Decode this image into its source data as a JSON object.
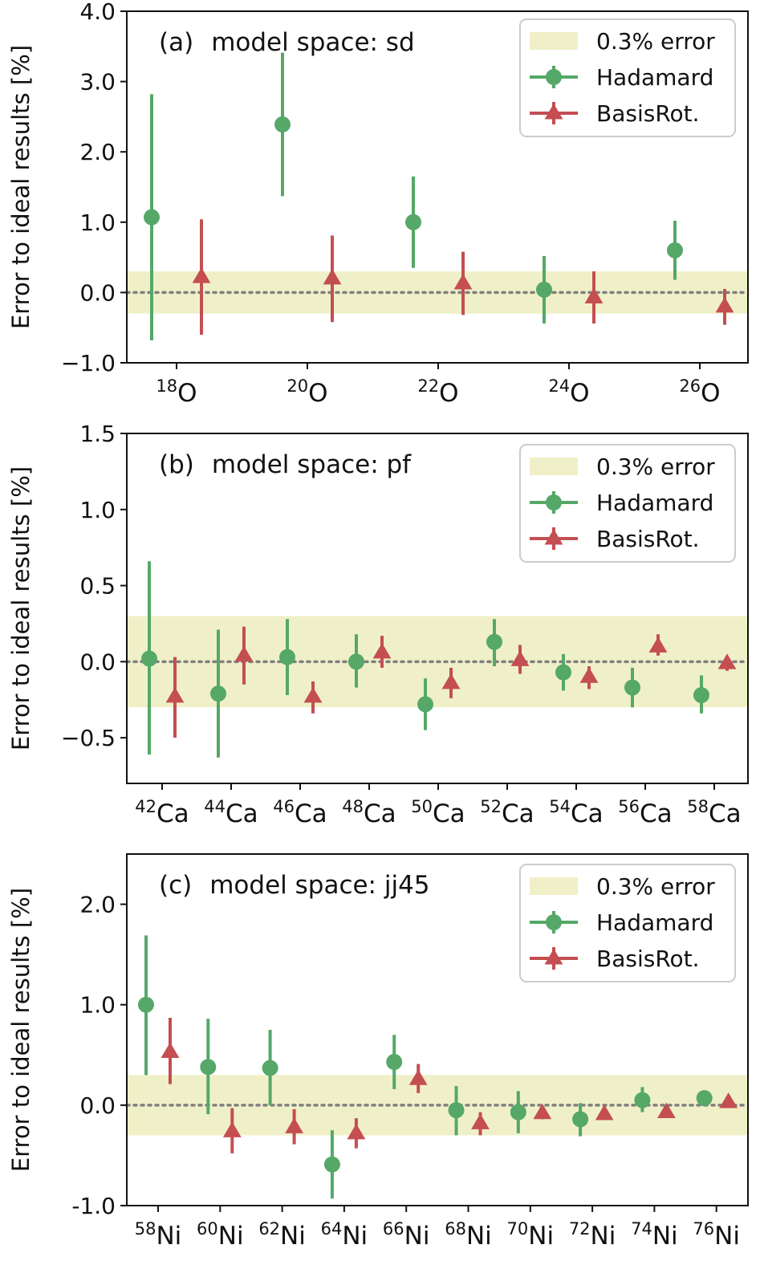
{
  "chart_data": [
    {
      "type": "errorbar",
      "panel_label": "(a)",
      "title": "model space: sd",
      "ylabel": "Error to ideal results [%]",
      "ylim": [
        -1.0,
        4.0
      ],
      "yticks": [
        -1.0,
        0.0,
        1.0,
        2.0,
        3.0,
        4.0
      ],
      "ytick_labels": [
        "−1.0",
        "0.0",
        "1.0",
        "2.0",
        "3.0",
        "4.0"
      ],
      "categories": [
        {
          "mass": "18",
          "element": "O"
        },
        {
          "mass": "20",
          "element": "O"
        },
        {
          "mass": "22",
          "element": "O"
        },
        {
          "mass": "24",
          "element": "O"
        },
        {
          "mass": "26",
          "element": "O"
        }
      ],
      "band": {
        "label": "0.3% error",
        "low": -0.3,
        "high": 0.3,
        "color": "#f0f0c8"
      },
      "reference_line": 0.0,
      "legend": {
        "position": "top-right",
        "entries": [
          "0.3% error",
          "Hadamard",
          "BasisRot."
        ]
      },
      "series": [
        {
          "name": "Hadamard",
          "marker": "circle",
          "color": "#55a868",
          "values": [
            1.07,
            2.39,
            1.0,
            0.04,
            0.6
          ],
          "err_low": [
            -0.68,
            1.37,
            0.35,
            -0.44,
            0.18
          ],
          "err_high": [
            2.82,
            3.41,
            1.65,
            0.52,
            1.02
          ]
        },
        {
          "name": "BasisRot.",
          "marker": "triangle",
          "color": "#c44e52",
          "values": [
            0.22,
            0.2,
            0.13,
            -0.07,
            -0.2
          ],
          "err_low": [
            -0.6,
            -0.42,
            -0.32,
            -0.44,
            -0.46
          ],
          "err_high": [
            1.04,
            0.81,
            0.58,
            0.3,
            0.05
          ]
        }
      ]
    },
    {
      "type": "errorbar",
      "panel_label": "(b)",
      "title": "model space: pf",
      "ylabel": "Error to ideal results [%]",
      "ylim": [
        -0.8,
        1.5
      ],
      "yticks": [
        -0.5,
        0.0,
        0.5,
        1.0,
        1.5
      ],
      "ytick_labels": [
        "−0.5",
        "0.0",
        "0.5",
        "1.0",
        "1.5"
      ],
      "categories": [
        {
          "mass": "42",
          "element": "Ca"
        },
        {
          "mass": "44",
          "element": "Ca"
        },
        {
          "mass": "46",
          "element": "Ca"
        },
        {
          "mass": "48",
          "element": "Ca"
        },
        {
          "mass": "50",
          "element": "Ca"
        },
        {
          "mass": "52",
          "element": "Ca"
        },
        {
          "mass": "54",
          "element": "Ca"
        },
        {
          "mass": "56",
          "element": "Ca"
        },
        {
          "mass": "58",
          "element": "Ca"
        }
      ],
      "band": {
        "label": "0.3% error",
        "low": -0.3,
        "high": 0.3,
        "color": "#f0f0c8"
      },
      "reference_line": 0.0,
      "legend": {
        "position": "top-right",
        "entries": [
          "0.3% error",
          "Hadamard",
          "BasisRot."
        ]
      },
      "series": [
        {
          "name": "Hadamard",
          "marker": "circle",
          "color": "#55a868",
          "values": [
            0.02,
            -0.21,
            0.03,
            0.0,
            -0.28,
            0.13,
            -0.07,
            -0.17,
            -0.22
          ],
          "err_low": [
            -0.61,
            -0.63,
            -0.22,
            -0.17,
            -0.45,
            -0.03,
            -0.19,
            -0.3,
            -0.34
          ],
          "err_high": [
            0.66,
            0.21,
            0.28,
            0.18,
            -0.11,
            0.28,
            0.05,
            -0.04,
            -0.09
          ]
        },
        {
          "name": "BasisRot.",
          "marker": "triangle",
          "color": "#c44e52",
          "values": [
            -0.23,
            0.04,
            -0.23,
            0.06,
            -0.14,
            0.01,
            -0.1,
            0.1,
            -0.01
          ],
          "err_low": [
            -0.5,
            -0.15,
            -0.34,
            -0.04,
            -0.24,
            -0.08,
            -0.18,
            0.04,
            -0.06
          ],
          "err_high": [
            0.03,
            0.23,
            -0.13,
            0.17,
            -0.04,
            0.11,
            -0.03,
            0.18,
            0.03
          ]
        }
      ]
    },
    {
      "type": "errorbar",
      "panel_label": "(c)",
      "title": "model space: jj45",
      "ylabel": "Error to ideal results [%]",
      "ylim": [
        -1.0,
        2.5
      ],
      "yticks": [
        -1.0,
        0.0,
        1.0,
        2.0
      ],
      "ytick_labels": [
        "-1.0",
        "0.0",
        "1.0",
        "2.0"
      ],
      "categories": [
        {
          "mass": "58",
          "element": "Ni"
        },
        {
          "mass": "60",
          "element": "Ni"
        },
        {
          "mass": "62",
          "element": "Ni"
        },
        {
          "mass": "64",
          "element": "Ni"
        },
        {
          "mass": "66",
          "element": "Ni"
        },
        {
          "mass": "68",
          "element": "Ni"
        },
        {
          "mass": "70",
          "element": "Ni"
        },
        {
          "mass": "72",
          "element": "Ni"
        },
        {
          "mass": "74",
          "element": "Ni"
        },
        {
          "mass": "76",
          "element": "Ni"
        }
      ],
      "band": {
        "label": "0.3% error",
        "low": -0.3,
        "high": 0.3,
        "color": "#f0f0c8"
      },
      "reference_line": 0.0,
      "legend": {
        "position": "top-right",
        "entries": [
          "0.3% error",
          "Hadamard",
          "BasisRot."
        ]
      },
      "series": [
        {
          "name": "Hadamard",
          "marker": "circle",
          "color": "#55a868",
          "values": [
            1.0,
            0.38,
            0.37,
            -0.59,
            0.43,
            -0.05,
            -0.07,
            -0.14,
            0.05,
            0.07
          ],
          "err_low": [
            0.3,
            -0.09,
            0.0,
            -0.93,
            0.16,
            -0.3,
            -0.28,
            -0.31,
            -0.07,
            0.04
          ],
          "err_high": [
            1.69,
            0.86,
            0.75,
            -0.25,
            0.7,
            0.19,
            0.14,
            0.02,
            0.18,
            0.1
          ]
        },
        {
          "name": "BasisRot.",
          "marker": "triangle",
          "color": "#c44e52",
          "values": [
            0.53,
            -0.26,
            -0.22,
            -0.28,
            0.26,
            -0.18,
            -0.08,
            -0.09,
            -0.07,
            0.03
          ],
          "err_low": [
            0.21,
            -0.48,
            -0.39,
            -0.43,
            0.12,
            -0.3,
            -0.14,
            -0.14,
            -0.12,
            -0.01
          ],
          "err_high": [
            0.87,
            -0.03,
            -0.04,
            -0.13,
            0.41,
            -0.07,
            -0.02,
            -0.04,
            -0.02,
            0.07
          ]
        }
      ]
    }
  ]
}
